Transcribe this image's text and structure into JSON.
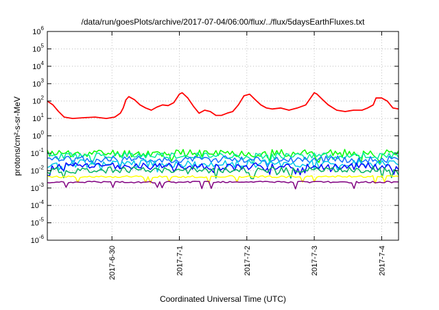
{
  "chart_data": {
    "type": "line",
    "title": "/data/run/goesPlots/archive/2017-07-04/06:00/flux/../flux/5daysEarthFluxes.txt",
    "xlabel": "Coordinated Universal Time (UTC)",
    "ylabel": "protons/cm²-s-sr-MeV",
    "y_scale": "log",
    "ylim_exp": [
      -6,
      6
    ],
    "y_tick_exps": [
      -6,
      -5,
      -4,
      -3,
      -2,
      -1,
      0,
      1,
      2,
      3,
      4,
      5,
      6
    ],
    "x_range_days": [
      "2017-06-29T01:00",
      "2017-07-04T06:00"
    ],
    "x_ticks": [
      "2017-6-30",
      "2017-7-1",
      "2017-7-2",
      "2017-7-3",
      "2017-7-4"
    ],
    "grid": true,
    "series": [
      {
        "color": "#ff0000",
        "points": [
          [
            "2017-06-29T01:00",
            100
          ],
          [
            "2017-06-29T03:00",
            60
          ],
          [
            "2017-06-29T05:00",
            25
          ],
          [
            "2017-06-29T07:00",
            12
          ],
          [
            "2017-06-29T10:00",
            10
          ],
          [
            "2017-06-29T14:00",
            11
          ],
          [
            "2017-06-29T18:00",
            12
          ],
          [
            "2017-06-29T22:00",
            10
          ],
          [
            "2017-06-30T01:00",
            12
          ],
          [
            "2017-06-30T03:00",
            20
          ],
          [
            "2017-06-30T04:00",
            40
          ],
          [
            "2017-06-30T05:00",
            120
          ],
          [
            "2017-06-30T06:00",
            180
          ],
          [
            "2017-06-30T08:00",
            120
          ],
          [
            "2017-06-30T10:00",
            60
          ],
          [
            "2017-06-30T12:00",
            40
          ],
          [
            "2017-06-30T14:00",
            30
          ],
          [
            "2017-06-30T16:00",
            45
          ],
          [
            "2017-06-30T18:00",
            60
          ],
          [
            "2017-06-30T20:00",
            55
          ],
          [
            "2017-06-30T22:00",
            80
          ],
          [
            "2017-07-01T00:00",
            250
          ],
          [
            "2017-07-01T01:00",
            300
          ],
          [
            "2017-07-01T03:00",
            150
          ],
          [
            "2017-07-01T05:00",
            50
          ],
          [
            "2017-07-01T07:00",
            20
          ],
          [
            "2017-07-01T09:00",
            30
          ],
          [
            "2017-07-01T11:00",
            25
          ],
          [
            "2017-07-01T13:00",
            15
          ],
          [
            "2017-07-01T15:00",
            15
          ],
          [
            "2017-07-01T17:00",
            20
          ],
          [
            "2017-07-01T19:00",
            25
          ],
          [
            "2017-07-01T21:00",
            60
          ],
          [
            "2017-07-01T23:00",
            200
          ],
          [
            "2017-07-02T01:00",
            250
          ],
          [
            "2017-07-02T03:00",
            120
          ],
          [
            "2017-07-02T05:00",
            60
          ],
          [
            "2017-07-02T07:00",
            40
          ],
          [
            "2017-07-02T09:00",
            35
          ],
          [
            "2017-07-02T12:00",
            40
          ],
          [
            "2017-07-02T15:00",
            30
          ],
          [
            "2017-07-02T18:00",
            40
          ],
          [
            "2017-07-02T21:00",
            60
          ],
          [
            "2017-07-03T00:00",
            300
          ],
          [
            "2017-07-03T01:00",
            250
          ],
          [
            "2017-07-03T03:00",
            120
          ],
          [
            "2017-07-03T05:00",
            60
          ],
          [
            "2017-07-03T08:00",
            30
          ],
          [
            "2017-07-03T11:00",
            25
          ],
          [
            "2017-07-03T14:00",
            30
          ],
          [
            "2017-07-03T17:00",
            30
          ],
          [
            "2017-07-03T19:00",
            40
          ],
          [
            "2017-07-03T21:00",
            60
          ],
          [
            "2017-07-03T22:00",
            150
          ],
          [
            "2017-07-04T00:00",
            150
          ],
          [
            "2017-07-04T02:00",
            100
          ],
          [
            "2017-07-04T04:00",
            40
          ],
          [
            "2017-07-04T06:00",
            35
          ]
        ]
      },
      {
        "color": "#00ff00",
        "level": 0.1,
        "jitter": 0.45,
        "seed": 11
      },
      {
        "color": "#00e8a0",
        "level": 0.07,
        "jitter": 0.4,
        "seed": 23
      },
      {
        "color": "#1070ff",
        "level": 0.045,
        "jitter": 0.4,
        "seed": 37
      },
      {
        "color": "#00c8e8",
        "level": 0.025,
        "jitter": 0.45,
        "seed": 53
      },
      {
        "color": "#0000ff",
        "level": 0.018,
        "jitter": 0.4,
        "seed": 71
      },
      {
        "color": "#00b060",
        "level": 0.011,
        "jitter": 0.35,
        "seed": 89
      },
      {
        "color": "#ffff00",
        "level": 0.0045,
        "jitter": 0.12,
        "seed": 97
      },
      {
        "color": "#800080",
        "level": 0.0022,
        "jitter": 0.1,
        "seed": 113
      }
    ]
  }
}
